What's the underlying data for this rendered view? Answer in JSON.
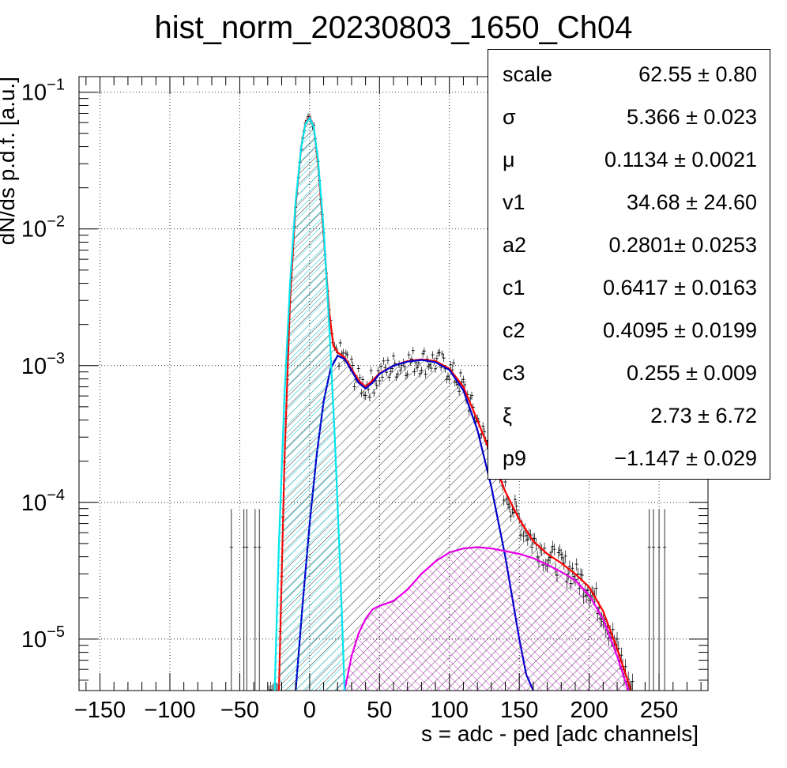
{
  "chart_data": {
    "type": "line",
    "title": "hist_norm_20230803_1650_Ch04",
    "xlabel": "s = adc - ped [adc channels]",
    "ylabel": "dN/ds p.d.f. [a.u.]",
    "xlim": [
      -165,
      285
    ],
    "ylim": [
      4.2e-06,
      0.13
    ],
    "yscale": "log",
    "grid": true,
    "x_ticks": [
      -150,
      -100,
      -50,
      0,
      50,
      100,
      150,
      200,
      250
    ],
    "y_ticks": [
      {
        "base": "10",
        "exp": "−1",
        "value": 0.1
      },
      {
        "base": "10",
        "exp": "−2",
        "value": 0.01
      },
      {
        "base": "10",
        "exp": "−3",
        "value": 0.001
      },
      {
        "base": "10",
        "exp": "−4",
        "value": 0.0001
      },
      {
        "base": "10",
        "exp": "−5",
        "value": 1e-05
      }
    ],
    "colors": {
      "total_fit": "#ff0000",
      "pedestal": "#00e5ee",
      "one_pe": "#0000cc",
      "two_pe": "#e600e6",
      "data": "#000000"
    },
    "series": [
      {
        "key": "total",
        "x": [
          -22,
          -18,
          -14,
          -10,
          -6,
          -3,
          0,
          3,
          6,
          10,
          14,
          17,
          20,
          25,
          30,
          35,
          40,
          45,
          50,
          60,
          70,
          80,
          90,
          100,
          110,
          120,
          130,
          140,
          150,
          160,
          170,
          180,
          190,
          200,
          210,
          220,
          230
        ],
        "y": [
          4.2e-06,
          0.0002,
          0.003,
          0.015,
          0.04,
          0.06,
          0.066,
          0.055,
          0.03,
          0.009,
          0.0025,
          0.0014,
          0.00125,
          0.00115,
          0.00095,
          0.00078,
          0.0007,
          0.00078,
          0.00088,
          0.001,
          0.00108,
          0.00111,
          0.00108,
          0.00095,
          0.0007,
          0.0004,
          0.00022,
          0.00012,
          7.5e-05,
          5.2e-05,
          4.2e-05,
          3.6e-05,
          3e-05,
          2.4e-05,
          1.6e-05,
          8.5e-06,
          4.2e-06
        ]
      },
      {
        "key": "pedestal",
        "x": [
          -25,
          -22,
          -18,
          -14,
          -10,
          -6,
          -3,
          0,
          3,
          6,
          10,
          14,
          18,
          22,
          25
        ],
        "y": [
          4.2e-06,
          5e-05,
          0.0006,
          0.004,
          0.016,
          0.04,
          0.059,
          0.065,
          0.055,
          0.032,
          0.01,
          0.002,
          0.0003,
          3e-05,
          4.2e-06
        ]
      },
      {
        "key": "one_pe",
        "x": [
          -10,
          -5,
          0,
          5,
          10,
          15,
          20,
          25,
          30,
          35,
          40,
          45,
          50,
          60,
          70,
          80,
          90,
          100,
          110,
          120,
          130,
          140,
          150,
          155,
          160
        ],
        "y": [
          4.2e-06,
          1.8e-05,
          7e-05,
          0.00022,
          0.00055,
          0.00095,
          0.00118,
          0.00112,
          0.00092,
          0.00075,
          0.00068,
          0.00075,
          0.00087,
          0.001,
          0.00107,
          0.0011,
          0.00106,
          0.00093,
          0.00066,
          0.00034,
          0.00013,
          4e-05,
          1e-05,
          5.5e-06,
          4.2e-06
        ]
      },
      {
        "key": "two_pe",
        "x": [
          25,
          30,
          35,
          40,
          45,
          50,
          60,
          70,
          80,
          90,
          100,
          110,
          120,
          130,
          140,
          150,
          160,
          170,
          180,
          190,
          200,
          210,
          220,
          228
        ],
        "y": [
          4.2e-06,
          7.5e-06,
          1.1e-05,
          1.4e-05,
          1.65e-05,
          1.75e-05,
          1.9e-05,
          2.3e-05,
          3e-05,
          3.7e-05,
          4.3e-05,
          4.6e-05,
          4.7e-05,
          4.6e-05,
          4.4e-05,
          4.2e-05,
          3.9e-05,
          3.5e-05,
          3.1e-05,
          2.7e-05,
          2.1e-05,
          1.4e-05,
          7.5e-06,
          4.2e-06
        ]
      }
    ]
  },
  "stats": [
    {
      "name": "scale",
      "value": "62.55 ± 0.80"
    },
    {
      "name": "σ",
      "value": "5.366 ± 0.023"
    },
    {
      "name": "μ",
      "value": "0.1134 ± 0.0021"
    },
    {
      "name": "v1",
      "value": "34.68 ± 24.60"
    },
    {
      "name": "a2",
      "value": "0.2801± 0.0253"
    },
    {
      "name": "c1",
      "value": "0.6417 ± 0.0163"
    },
    {
      "name": "c2",
      "value": "0.4095 ± 0.0199"
    },
    {
      "name": "c3",
      "value": "0.255 ± 0.009"
    },
    {
      "name": "ξ",
      "value": "2.73 ± 6.72"
    },
    {
      "name": "p9",
      "value": "−1.147 ± 0.029"
    }
  ]
}
